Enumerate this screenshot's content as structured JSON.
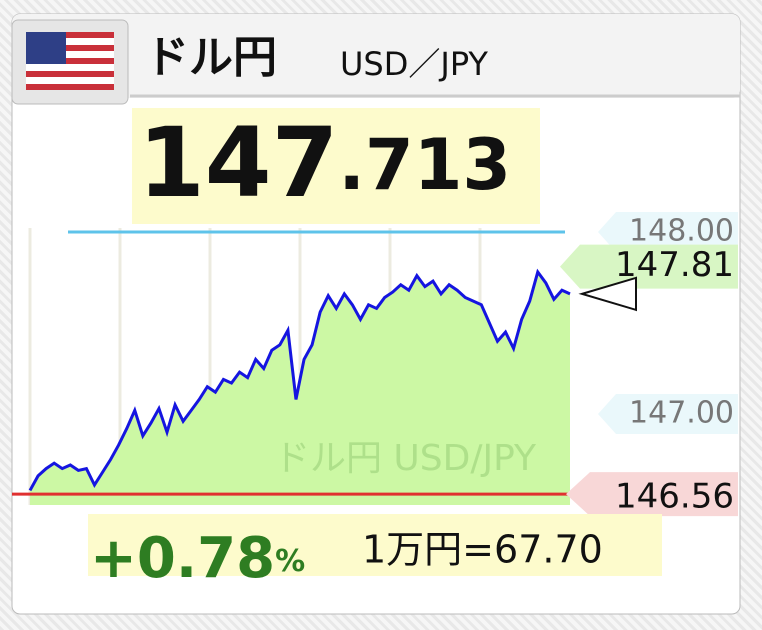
{
  "chart_data": {
    "type": "line",
    "title": "ドル円",
    "subtitle": "USD／JPY",
    "price_integer": "147",
    "price_decimal": ".713",
    "watermark": "ドル円 USD/JPY",
    "values": [
      146.58,
      146.66,
      146.7,
      146.73,
      146.7,
      146.72,
      146.69,
      146.7,
      146.61,
      146.68,
      146.75,
      146.83,
      146.92,
      147.02,
      146.88,
      146.95,
      147.03,
      146.9,
      147.05,
      146.96,
      147.02,
      147.08,
      147.15,
      147.12,
      147.19,
      147.17,
      147.23,
      147.2,
      147.3,
      147.25,
      147.35,
      147.38,
      147.46,
      147.08,
      147.3,
      147.38,
      147.56,
      147.65,
      147.58,
      147.66,
      147.6,
      147.52,
      147.6,
      147.58,
      147.64,
      147.67,
      147.71,
      147.68,
      147.76,
      147.7,
      147.73,
      147.66,
      147.71,
      147.68,
      147.64,
      147.62,
      147.6,
      147.5,
      147.4,
      147.45,
      147.36,
      147.52,
      147.62,
      147.78,
      147.72,
      147.63,
      147.68,
      147.66
    ],
    "color": "#1515e0",
    "fill": "#ccf8a4",
    "ylim": [
      146.5,
      148.0
    ],
    "yticks": [
      {
        "value": 148.0,
        "label": "148.00"
      },
      {
        "value": 147.0,
        "label": "147.00"
      }
    ],
    "top_line_color": "#5ec3ea",
    "high": {
      "value": 147.81,
      "label": "147.81"
    },
    "low": {
      "value": 146.56,
      "label": "146.56",
      "color": "#e03030"
    },
    "change": {
      "value": 0.78,
      "label": "+0.78",
      "unit": "%"
    },
    "conversion": "1万円=67.70"
  }
}
